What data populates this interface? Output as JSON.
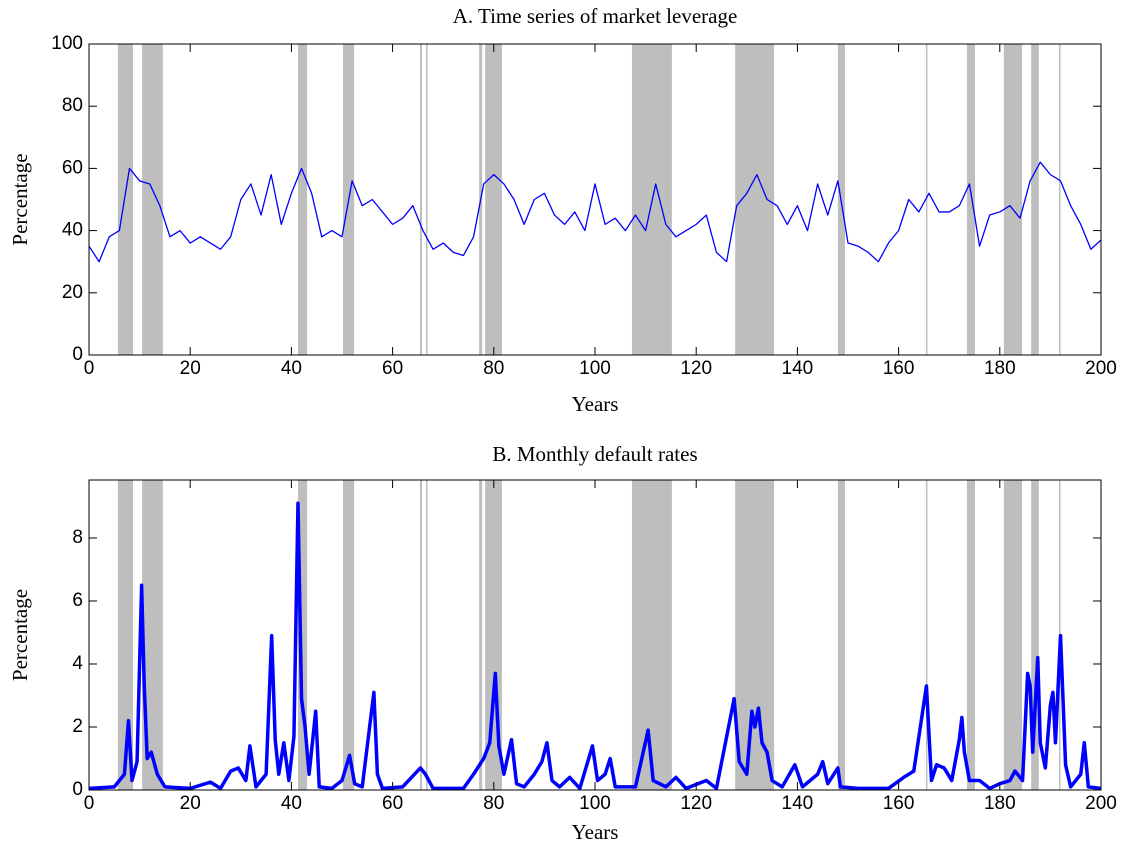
{
  "chart_data": [
    {
      "type": "line",
      "title": "A.  Time series of market leverage",
      "x_label": "Years",
      "y_label": "Percentage",
      "color": "#0000ff",
      "band_color": "#bebebe",
      "xlim": [
        0,
        200
      ],
      "xticks": [
        0,
        20,
        40,
        60,
        80,
        100,
        120,
        140,
        160,
        180,
        200
      ],
      "ylim": [
        0,
        100
      ],
      "yticks": [
        0,
        20,
        40,
        60,
        80,
        100
      ],
      "shaded_regions": [
        [
          5.7,
          8.7
        ],
        [
          10.5,
          14.6
        ],
        [
          41.3,
          43.1
        ],
        [
          50.2,
          52.4
        ],
        [
          65.4,
          65.8
        ],
        [
          66.6,
          66.8
        ],
        [
          77.1,
          77.7
        ],
        [
          78.3,
          81.6
        ],
        [
          107.3,
          115.2
        ],
        [
          127.7,
          135.4
        ],
        [
          148.0,
          149.4
        ],
        [
          165.4,
          165.6
        ],
        [
          173.5,
          175.1
        ],
        [
          180.8,
          184.4
        ],
        [
          186.2,
          187.7
        ],
        [
          191.7,
          191.9
        ]
      ],
      "x": [
        0,
        2,
        4,
        6,
        8,
        10,
        12,
        14,
        16,
        18,
        20,
        22,
        24,
        26,
        28,
        30,
        32,
        34,
        36,
        38,
        40,
        42,
        44,
        46,
        48,
        50,
        52,
        54,
        56,
        58,
        60,
        62,
        64,
        66,
        68,
        70,
        72,
        74,
        76,
        78,
        80,
        82,
        84,
        86,
        88,
        90,
        92,
        94,
        96,
        98,
        100,
        102,
        104,
        106,
        108,
        110,
        112,
        114,
        116,
        118,
        120,
        122,
        124,
        126,
        128,
        130,
        132,
        134,
        136,
        138,
        140,
        142,
        144,
        146,
        148,
        150,
        152,
        154,
        156,
        158,
        160,
        162,
        164,
        166,
        168,
        170,
        172,
        174,
        176,
        178,
        180,
        182,
        184,
        186,
        188,
        190,
        192,
        194,
        196,
        198,
        200
      ],
      "values": [
        35,
        30,
        38,
        40,
        60,
        56,
        55,
        48,
        38,
        40,
        36,
        38,
        36,
        34,
        38,
        50,
        55,
        45,
        58,
        42,
        52,
        60,
        52,
        38,
        40,
        38,
        56,
        48,
        50,
        46,
        42,
        44,
        48,
        40,
        34,
        36,
        33,
        32,
        38,
        55,
        58,
        55,
        50,
        42,
        50,
        52,
        45,
        42,
        46,
        40,
        55,
        42,
        44,
        40,
        45,
        40,
        55,
        42,
        38,
        40,
        42,
        45,
        33,
        30,
        48,
        52,
        58,
        50,
        48,
        42,
        48,
        40,
        55,
        45,
        56,
        36,
        35,
        33,
        30,
        36,
        40,
        50,
        46,
        52,
        46,
        46,
        48,
        55,
        35,
        45,
        46,
        48,
        44,
        56,
        62,
        58,
        56,
        48,
        42,
        34,
        37
      ]
    },
    {
      "type": "line",
      "title": "B.  Monthly default rates",
      "x_label": "Years",
      "y_label": "Percentage",
      "color": "#0000ff",
      "band_color": "#bebebe",
      "xlim": [
        0,
        200
      ],
      "xticks": [
        0,
        20,
        40,
        60,
        80,
        100,
        120,
        140,
        160,
        180,
        200
      ],
      "ylim": [
        0,
        9.84
      ],
      "yticks": [
        0,
        2,
        4,
        6,
        8
      ],
      "shaded_regions": [
        [
          5.7,
          8.7
        ],
        [
          10.5,
          14.6
        ],
        [
          41.3,
          43.1
        ],
        [
          50.2,
          52.4
        ],
        [
          65.4,
          65.8
        ],
        [
          66.6,
          66.8
        ],
        [
          77.1,
          77.7
        ],
        [
          78.3,
          81.6
        ],
        [
          107.3,
          115.2
        ],
        [
          127.7,
          135.4
        ],
        [
          148.0,
          149.4
        ],
        [
          165.4,
          165.6
        ],
        [
          173.5,
          175.1
        ],
        [
          180.8,
          184.4
        ],
        [
          186.2,
          187.7
        ],
        [
          191.7,
          191.9
        ]
      ],
      "x": [
        0,
        5,
        7,
        7.8,
        8.5,
        9.5,
        10.4,
        10.9,
        11.5,
        12.3,
        13.5,
        15,
        20,
        24,
        26,
        28,
        29.5,
        31,
        31.8,
        33,
        35,
        36.1,
        36.8,
        37.5,
        38.5,
        39.5,
        40.5,
        41.3,
        42,
        42.7,
        43.5,
        44.8,
        45.5,
        48,
        50,
        51.5,
        52.5,
        54,
        56.3,
        57,
        58,
        62,
        65.5,
        66.5,
        68,
        74,
        76,
        78,
        79.2,
        80.3,
        81,
        82,
        83.5,
        84.5,
        86,
        88,
        89.5,
        90.5,
        91.5,
        93,
        95,
        97,
        99.5,
        100.5,
        102,
        103,
        104,
        108,
        110.5,
        111.5,
        114,
        116,
        118,
        122,
        124,
        127.5,
        128.5,
        130,
        131,
        131.6,
        132.3,
        133,
        134,
        135,
        137,
        139.5,
        141,
        144,
        145,
        146,
        148,
        148.5,
        152,
        158,
        161,
        163,
        165.5,
        166.5,
        167.5,
        169,
        170.5,
        172,
        172.5,
        173,
        174,
        176,
        178,
        180,
        182,
        183,
        184.5,
        185.5,
        186,
        186.5,
        187.5,
        188,
        189,
        190,
        190.5,
        191,
        192,
        193,
        194,
        196,
        196.7,
        197.5,
        200
      ],
      "values": [
        0.05,
        0.1,
        0.5,
        2.2,
        0.3,
        0.9,
        6.5,
        3.4,
        1.0,
        1.2,
        0.5,
        0.1,
        0.05,
        0.25,
        0.05,
        0.6,
        0.7,
        0.3,
        1.4,
        0.1,
        0.5,
        4.9,
        1.6,
        0.5,
        1.5,
        0.3,
        1.7,
        9.1,
        2.9,
        2.0,
        0.5,
        2.5,
        0.1,
        0.05,
        0.3,
        1.1,
        0.2,
        0.1,
        3.1,
        0.5,
        0.05,
        0.1,
        0.7,
        0.5,
        0.05,
        0.05,
        0.5,
        1.0,
        1.5,
        3.7,
        1.4,
        0.5,
        1.6,
        0.2,
        0.1,
        0.5,
        0.9,
        1.5,
        0.3,
        0.1,
        0.4,
        0.05,
        1.4,
        0.3,
        0.5,
        1.0,
        0.1,
        0.1,
        1.9,
        0.3,
        0.1,
        0.4,
        0.05,
        0.3,
        0.05,
        2.9,
        0.9,
        0.5,
        2.5,
        2.0,
        2.6,
        1.5,
        1.2,
        0.3,
        0.1,
        0.8,
        0.1,
        0.5,
        0.9,
        0.2,
        0.7,
        0.1,
        0.05,
        0.05,
        0.4,
        0.6,
        3.3,
        0.3,
        0.8,
        0.7,
        0.3,
        1.6,
        2.3,
        1.2,
        0.3,
        0.3,
        0.05,
        0.2,
        0.3,
        0.6,
        0.3,
        3.7,
        3.3,
        1.2,
        4.2,
        1.5,
        0.7,
        2.7,
        3.1,
        1.5,
        4.9,
        0.8,
        0.1,
        0.5,
        1.5,
        0.1,
        0.05
      ]
    }
  ]
}
